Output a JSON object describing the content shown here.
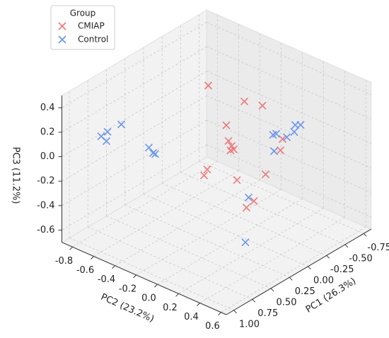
{
  "chart_data": {
    "type": "scatter3d",
    "xlabel": "PC1 (26.3%)",
    "ylabel": "PC2 (23.2%)",
    "zlabel": "PC3 (11.2%)",
    "legend_title": "Group",
    "legend_loc": "upper left",
    "grid": true,
    "xlim": [
      -0.85,
      1.1
    ],
    "ylim": [
      -0.9,
      0.65
    ],
    "zlim": [
      -0.7,
      0.5
    ],
    "xticks": [
      -0.75,
      {
        "value": -0.5,
        "label": "-0.50"
      },
      -0.25,
      {
        "value": 0,
        "label": "0.00"
      },
      0.25,
      {
        "value": 0.5,
        "label": "0.50"
      },
      0.75,
      {
        "value": 1,
        "label": "1.00"
      }
    ],
    "yticks": [
      -0.8,
      -0.6,
      -0.4,
      -0.2,
      {
        "value": 0,
        "label": "0.0"
      },
      0.2,
      0.4,
      0.6
    ],
    "zticks": [
      -0.6,
      -0.4,
      -0.2,
      {
        "value": 0,
        "label": "0.0"
      },
      0.2,
      0.4
    ],
    "series": [
      {
        "name": "CMIAP",
        "color": "#f07878",
        "x": [
          0,
          0,
          0,
          0,
          0,
          0,
          0,
          0,
          0,
          0,
          0,
          0,
          0,
          0,
          0,
          0
        ],
        "y": [
          -0.29,
          0.05,
          0.22,
          -0.12,
          -0.1,
          -0.07,
          -0.05,
          -0.08,
          -0.3,
          -0.33,
          -0.02,
          0.25,
          0.14,
          0.07,
          0.41,
          0.39
        ],
        "z": [
          0.42,
          0.42,
          0.45,
          0.16,
          0.04,
          0.01,
          -0.01,
          -0.03,
          -0.27,
          -0.33,
          -0.25,
          -0.1,
          -0.36,
          -0.44,
          0.25,
          0.15
        ]
      },
      {
        "name": "Control",
        "color": "#6a96ec",
        "x": [
          0.8,
          0.8,
          0.8,
          0.8,
          0.8,
          0.8,
          0.8,
          -0.4,
          -0.4,
          -0.4,
          -0.4,
          -0.4,
          -0.4,
          -0.4,
          0,
          0.3
        ],
        "y": [
          -0.74,
          -0.68,
          -0.69,
          -0.55,
          -0.29,
          -0.25,
          -0.23,
          0.04,
          0.07,
          0.17,
          0.24,
          0.25,
          0.3,
          0.05,
          0.09,
          0.27
        ],
        "z": [
          0.12,
          0.18,
          0.1,
          0.29,
          0.2,
          0.17,
          0.17,
          0.0,
          0.02,
          0.03,
          0.1,
          0.16,
          0.18,
          -0.13,
          -0.35,
          -0.54
        ]
      }
    ]
  }
}
